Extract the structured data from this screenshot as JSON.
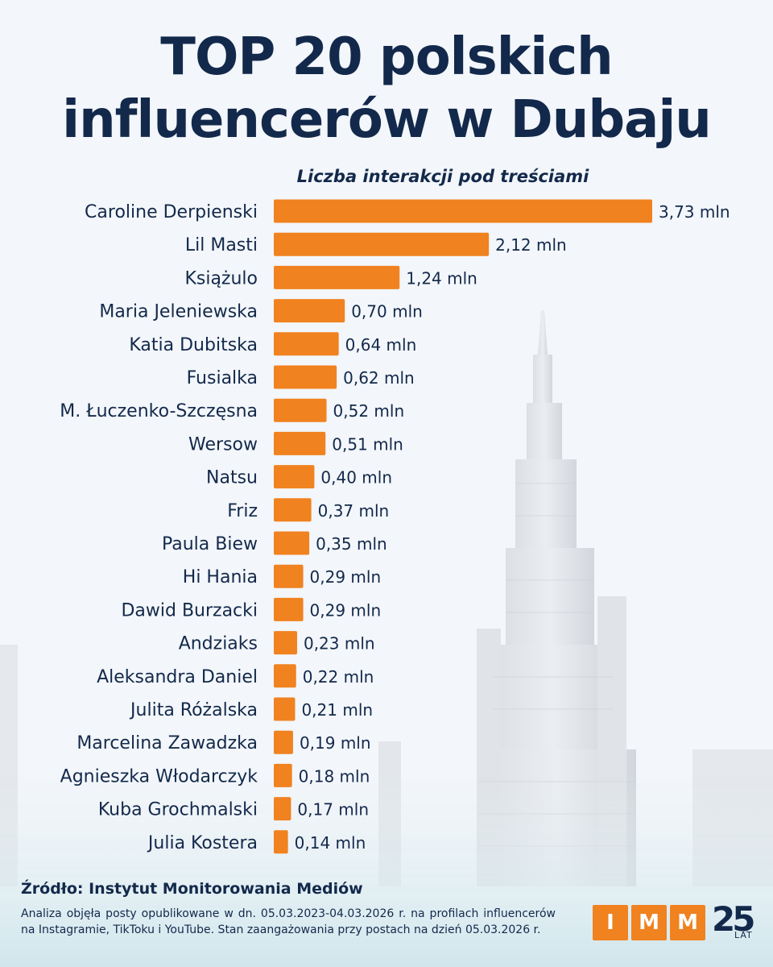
{
  "title_line1": "TOP 20 polskich",
  "title_line2": "influencerów w Dubaju",
  "chart_data": {
    "type": "bar",
    "orientation": "horizontal",
    "subtitle": "Liczba interakcji pod treściami",
    "unit": "mln",
    "categories": [
      "Caroline Derpienski",
      "Lil Masti",
      "Książulo",
      "Maria Jeleniewska",
      "Katia Dubitska",
      "Fusialka",
      "M. Łuczenko-Szczęsna",
      "Wersow",
      "Natsu",
      "Friz",
      "Paula Biew",
      "Hi Hania",
      "Dawid Burzacki",
      "Andziaks",
      "Aleksandra Daniel",
      "Julita Różalska",
      "Marcelina Zawadzka",
      "Agnieszka Włodarczyk",
      "Kuba Grochmalski",
      "Julia Kostera"
    ],
    "values": [
      3.73,
      2.12,
      1.24,
      0.7,
      0.64,
      0.62,
      0.52,
      0.51,
      0.4,
      0.37,
      0.35,
      0.29,
      0.29,
      0.23,
      0.22,
      0.21,
      0.19,
      0.18,
      0.17,
      0.14
    ],
    "labels": [
      "3,73 mln",
      "2,12 mln",
      "1,24 mln",
      "0,70 mln",
      "0,64 mln",
      "0,62 mln",
      "0,52 mln",
      "0,51 mln",
      "0,40 mln",
      "0,37 mln",
      "0,35 mln",
      "0,29 mln",
      "0,29 mln",
      "0,23 mln",
      "0,22 mln",
      "0,21 mln",
      "0,19 mln",
      "0,18 mln",
      "0,17 mln",
      "0,14 mln"
    ],
    "bar_color": "#f0821f",
    "axis_visible": false,
    "grid": false
  },
  "source": "Źródło: Instytut Monitorowania Mediów",
  "note": "Analiza objęła posty opublikowane w dn. 05.03.2023-04.03.2026 r. na profilach influencerów na Instagramie, TikToku i YouTube. Stan zaangażowania przy postach na dzień 05.03.2026 r.",
  "logo": {
    "letters": [
      "I",
      "M",
      "M"
    ],
    "anniversary": "25",
    "anniversary_label": "LAT"
  },
  "colors": {
    "title": "#13294b",
    "accent": "#f0821f",
    "background": "#f3f6fa"
  }
}
